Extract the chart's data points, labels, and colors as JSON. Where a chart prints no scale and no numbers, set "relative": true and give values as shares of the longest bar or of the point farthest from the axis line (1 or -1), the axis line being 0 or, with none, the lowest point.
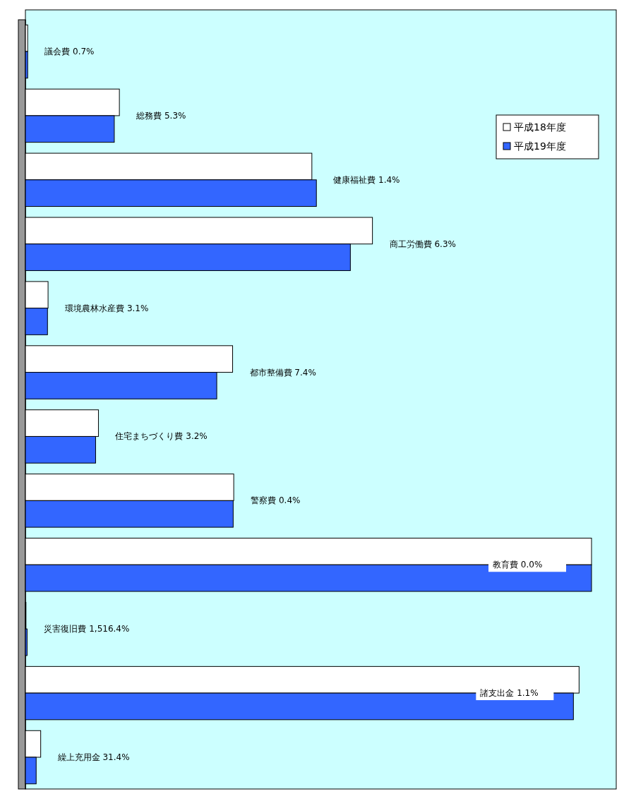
{
  "chart_data": {
    "type": "bar",
    "orientation": "horizontal",
    "relative": true,
    "legend": "top right",
    "categories": [
      "議会費 0.7%",
      "総務費 5.3%",
      "健康福祉費 1.4%",
      "商工労働費 6.3%",
      "環境農林水産費 3.1%",
      "都市整備費 7.4%",
      "住宅まちづくり費 3.2%",
      "警察費 0.4%",
      "教育費 0.0%",
      "災害復旧費 1,516.4%",
      "諸支出金 1.1%",
      "繰上充用金 31.4%"
    ],
    "series": [
      {
        "name": "平成18年度",
        "color": "#ffffff",
        "values": [
          0.004,
          0.166,
          0.506,
          0.613,
          0.04,
          0.366,
          0.129,
          0.368,
          1,
          0.001,
          0.978,
          0.027
        ]
      },
      {
        "name": "平成19年度",
        "color": "#3366ff",
        "values": [
          0.004,
          0.157,
          0.514,
          0.574,
          0.039,
          0.338,
          0.124,
          0.367,
          1,
          0.003,
          0.968,
          0.019
        ]
      }
    ]
  }
}
